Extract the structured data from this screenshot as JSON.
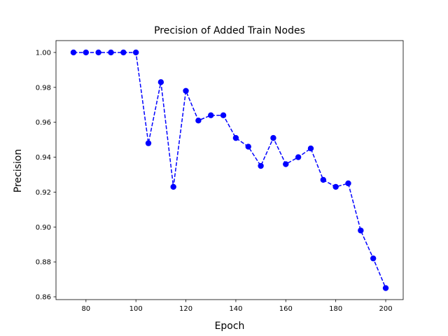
{
  "chart_data": {
    "type": "line",
    "title": "Precision of Added Train Nodes",
    "xlabel": "Epoch",
    "ylabel": "Precision",
    "xlim": [
      68,
      207
    ],
    "ylim": [
      0.8584,
      1.0068
    ],
    "xticks": [
      80,
      100,
      120,
      140,
      160,
      180,
      200
    ],
    "xtick_labels": [
      "80",
      "100",
      "120",
      "140",
      "160",
      "180",
      "200"
    ],
    "yticks": [
      0.86,
      0.88,
      0.9,
      0.92,
      0.94,
      0.96,
      0.98,
      1.0
    ],
    "ytick_labels": [
      "0.86",
      "0.88",
      "0.90",
      "0.92",
      "0.94",
      "0.96",
      "0.98",
      "1.00"
    ],
    "grid": false,
    "series": [
      {
        "color": "#0000ff",
        "line_style": "dashed",
        "marker": "circle",
        "x": [
          75,
          80,
          85,
          90,
          95,
          100,
          105,
          110,
          115,
          120,
          125,
          130,
          135,
          140,
          145,
          150,
          155,
          160,
          165,
          170,
          175,
          180,
          185,
          190,
          195,
          200
        ],
        "y": [
          1.0,
          1.0,
          1.0,
          1.0,
          1.0,
          1.0,
          0.948,
          0.983,
          0.923,
          0.978,
          0.961,
          0.964,
          0.964,
          0.951,
          0.946,
          0.935,
          0.951,
          0.936,
          0.94,
          0.945,
          0.927,
          0.923,
          0.925,
          0.898,
          0.882,
          0.865
        ]
      }
    ]
  }
}
